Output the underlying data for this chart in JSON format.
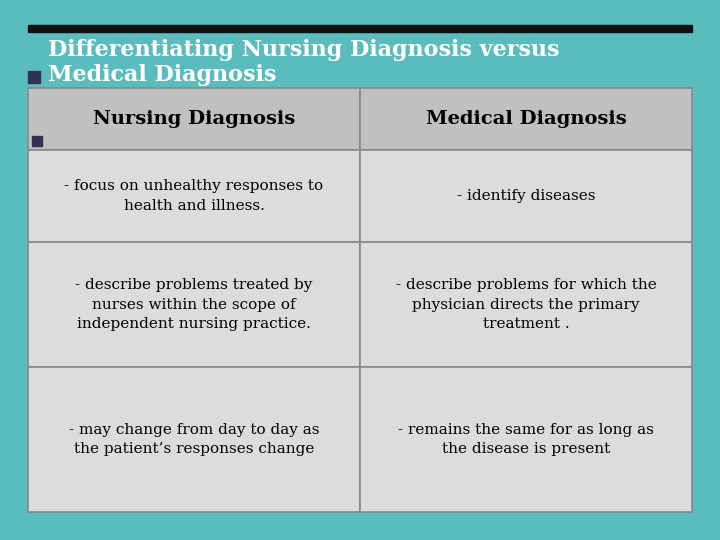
{
  "title_line1": "Differentiating Nursing Diagnosis versus",
  "title_line2": "Medical Diagnosis",
  "bg_color": "#5bbcbe",
  "table_bg_light": "#dcdcdc",
  "table_bg_header": "#c0c0c0",
  "border_color": "#888888",
  "header_left": "Nursing Diagnosis",
  "header_right": "Medical Diagnosis",
  "rows": [
    {
      "left": "- focus on unhealthy responses to\nhealth and illness.",
      "right": "- identify diseases"
    },
    {
      "left": "- describe problems treated by\nnurses within the scope of\nindependent nursing practice.",
      "right": "- describe problems for which the\nphysician directs the primary\ntreatment ."
    },
    {
      "left": "- may change from day to day as\nthe patient’s responses change",
      "right": "- remains the same for as long as\nthe disease is present"
    }
  ],
  "title_fontsize": 16,
  "header_fontsize": 14,
  "cell_fontsize": 11,
  "title_color": "#ffffff",
  "header_text_color": "#000000",
  "cell_text_color": "#000000",
  "title_bg_color": "#5bbcbe",
  "black_bar_color": "#111111",
  "bullet_color": "#2f3155"
}
